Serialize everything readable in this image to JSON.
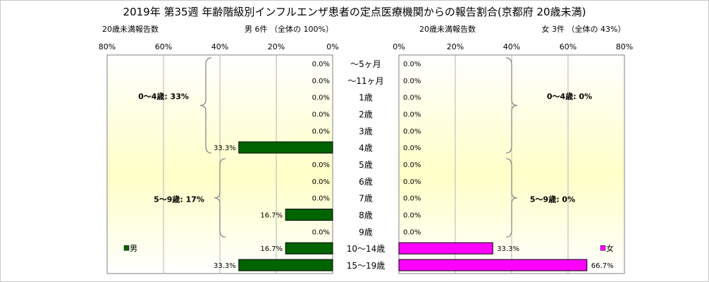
{
  "title": "2019年 第35週 年齢階級別インフルエンザ患者の定点医療機関からの報告割合(京都府 20歳未満)",
  "left_header": {
    "caption": "20歳未満報告数",
    "summary": "男 6件  （全体の  100%）"
  },
  "right_header": {
    "caption": "20歳未満報告数",
    "summary": "女 3件  （全体の  43%）"
  },
  "colors": {
    "male": "#006400",
    "female": "#ff00ff",
    "plot_gradient_top": "#ffffff",
    "plot_gradient_mid": "#ffffc8",
    "grid": "#b4b4b4"
  },
  "chart_data": [
    {
      "type": "bar",
      "orientation": "horizontal",
      "direction": "right-to-left",
      "categories": [
        "〜5ヶ月",
        "〜11ヶ月",
        "1歳",
        "2歳",
        "3歳",
        "4歳",
        "5歳",
        "6歳",
        "7歳",
        "8歳",
        "9歳",
        "10〜14歳",
        "15〜19歳"
      ],
      "series": [
        {
          "name": "男",
          "values": [
            0,
            0,
            0,
            0,
            0,
            33.3,
            0,
            0,
            0,
            16.7,
            0,
            16.7,
            33.3
          ],
          "labels": [
            "0.0%",
            "0.0%",
            "0.0%",
            "0.0%",
            "0.0%",
            "33.3%",
            "0.0%",
            "0.0%",
            "0.0%",
            "16.7%",
            "0.0%",
            "16.7%",
            "33.3%"
          ]
        }
      ],
      "xlim": [
        0,
        80
      ],
      "xticks": [
        "80%",
        "60%",
        "40%",
        "20%",
        "0%"
      ],
      "grid": true,
      "legend": "bottom-left",
      "annotations": [
        "0〜4歳: 33%",
        "5〜9歳: 17%"
      ]
    },
    {
      "type": "bar",
      "orientation": "horizontal",
      "direction": "left-to-right",
      "categories": [
        "〜5ヶ月",
        "〜11ヶ月",
        "1歳",
        "2歳",
        "3歳",
        "4歳",
        "5歳",
        "6歳",
        "7歳",
        "8歳",
        "9歳",
        "10〜14歳",
        "15〜19歳"
      ],
      "series": [
        {
          "name": "女",
          "values": [
            0,
            0,
            0,
            0,
            0,
            0,
            0,
            0,
            0,
            0,
            0,
            33.3,
            66.7
          ],
          "labels": [
            "0.0%",
            "0.0%",
            "0.0%",
            "0.0%",
            "0.0%",
            "0.0%",
            "0.0%",
            "0.0%",
            "0.0%",
            "0.0%",
            "0.0%",
            "33.3%",
            "66.7%"
          ]
        }
      ],
      "xlim": [
        0,
        80
      ],
      "xticks": [
        "0%",
        "20%",
        "40%",
        "60%",
        "80%"
      ],
      "grid": true,
      "legend": "bottom-right",
      "annotations": [
        "0〜4歳: 0%",
        "5〜9歳: 0%"
      ]
    }
  ]
}
